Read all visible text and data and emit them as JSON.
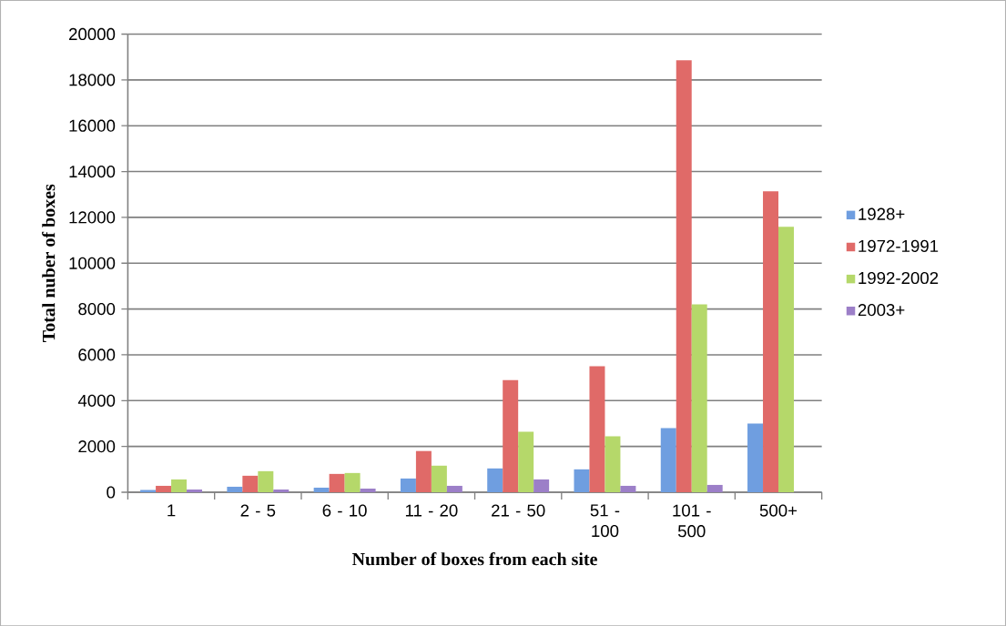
{
  "chart_data": {
    "type": "bar",
    "xlabel": "Number of boxes from each site",
    "ylabel": "Total nuber of boxes",
    "categories": [
      "1",
      "2 - 5",
      "6 - 10",
      "11 - 20",
      "21 - 50",
      "51 - 100",
      "101 - 500",
      "500+"
    ],
    "series": [
      {
        "name": "1928+",
        "color": "#6f9ee0",
        "values": [
          100,
          240,
          200,
          600,
          1040,
          1000,
          2800,
          3000
        ]
      },
      {
        "name": "1972-1991",
        "color": "#e06a68",
        "values": [
          280,
          720,
          800,
          1800,
          4900,
          5500,
          18860,
          13140
        ]
      },
      {
        "name": "1992-2002",
        "color": "#b5d86a",
        "values": [
          560,
          920,
          840,
          1160,
          2640,
          2440,
          8200,
          11590
        ]
      },
      {
        "name": "2003+",
        "color": "#9c7fc8",
        "values": [
          120,
          120,
          160,
          280,
          560,
          280,
          320,
          0
        ]
      }
    ],
    "ylim": [
      0,
      20000
    ],
    "yticks": [
      0,
      2000,
      4000,
      6000,
      8000,
      10000,
      12000,
      14000,
      16000,
      18000,
      20000
    ],
    "grid": "y",
    "legend": "right"
  }
}
